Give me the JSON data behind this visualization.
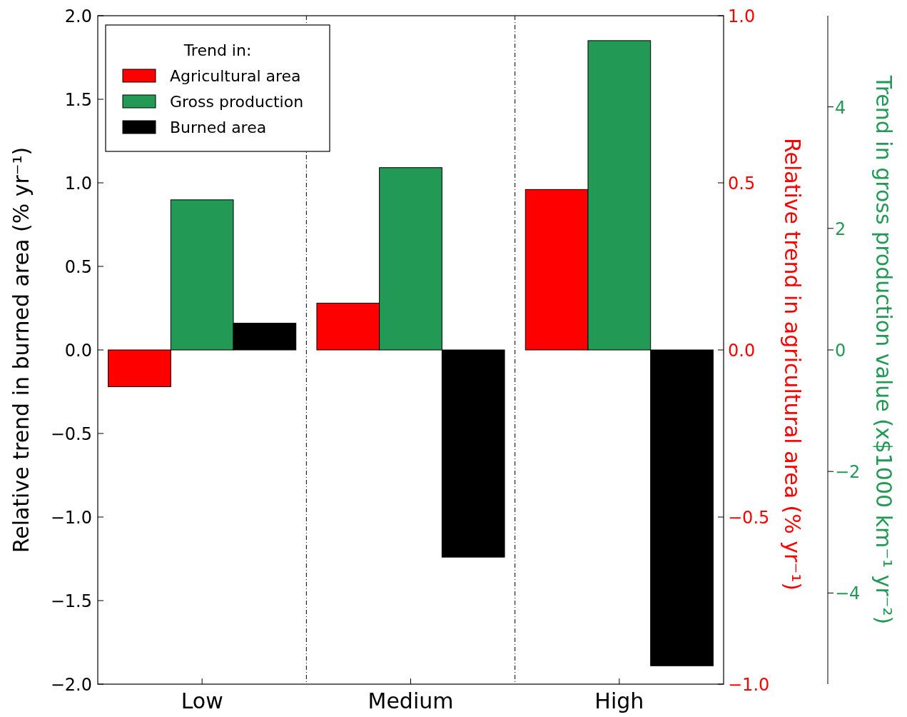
{
  "chart_data": {
    "type": "bar",
    "ylabel": "Relative trend in burned area (% yr⁻¹)",
    "y2label": "Relative trend in agricultural area (% yr⁻¹)",
    "y3label": "Trend in gross production value  (x$1000 km⁻¹ yr⁻²)",
    "categories": [
      "Low",
      "Medium",
      "High"
    ],
    "series": [
      {
        "name": "Agricultural area",
        "color": "#ff0000",
        "axis": "y2",
        "values": [
          -0.11,
          0.14,
          0.48
        ]
      },
      {
        "name": "Gross production",
        "color": "#229954",
        "axis": "y3",
        "values": [
          2.47,
          3.0,
          5.09
        ]
      },
      {
        "name": "Burned area",
        "color": "#000000",
        "values": [
          0.16,
          -1.24,
          -1.89
        ]
      }
    ],
    "ylim": [
      -2,
      2
    ],
    "yticks": [
      {
        "value": -2,
        "label": "−2.0"
      },
      {
        "value": -1.5,
        "label": "−1.5"
      },
      {
        "value": -1,
        "label": "−1.0"
      },
      {
        "value": -0.5,
        "label": "−0.5"
      },
      {
        "value": 0,
        "label": "0.0"
      },
      {
        "value": 0.5,
        "label": "0.5"
      },
      {
        "value": 1,
        "label": "1.0"
      },
      {
        "value": 1.5,
        "label": "1.5"
      },
      {
        "value": 2,
        "label": "2.0"
      }
    ],
    "y2lim": [
      -1,
      1
    ],
    "y2ticks": [
      {
        "value": -1,
        "label": "−1.0"
      },
      {
        "value": -0.5,
        "label": "−0.5"
      },
      {
        "value": 0,
        "label": "0.0"
      },
      {
        "value": 0.5,
        "label": "0.5"
      },
      {
        "value": 1,
        "label": "1.0"
      }
    ],
    "y3lim": [
      -5.5,
      5.5
    ],
    "y3ticks": [
      {
        "value": -4,
        "label": "−4"
      },
      {
        "value": -2,
        "label": "−2"
      },
      0,
      2,
      4
    ],
    "legend": "top left",
    "legend_title": "Trend in:",
    "grid": false
  }
}
